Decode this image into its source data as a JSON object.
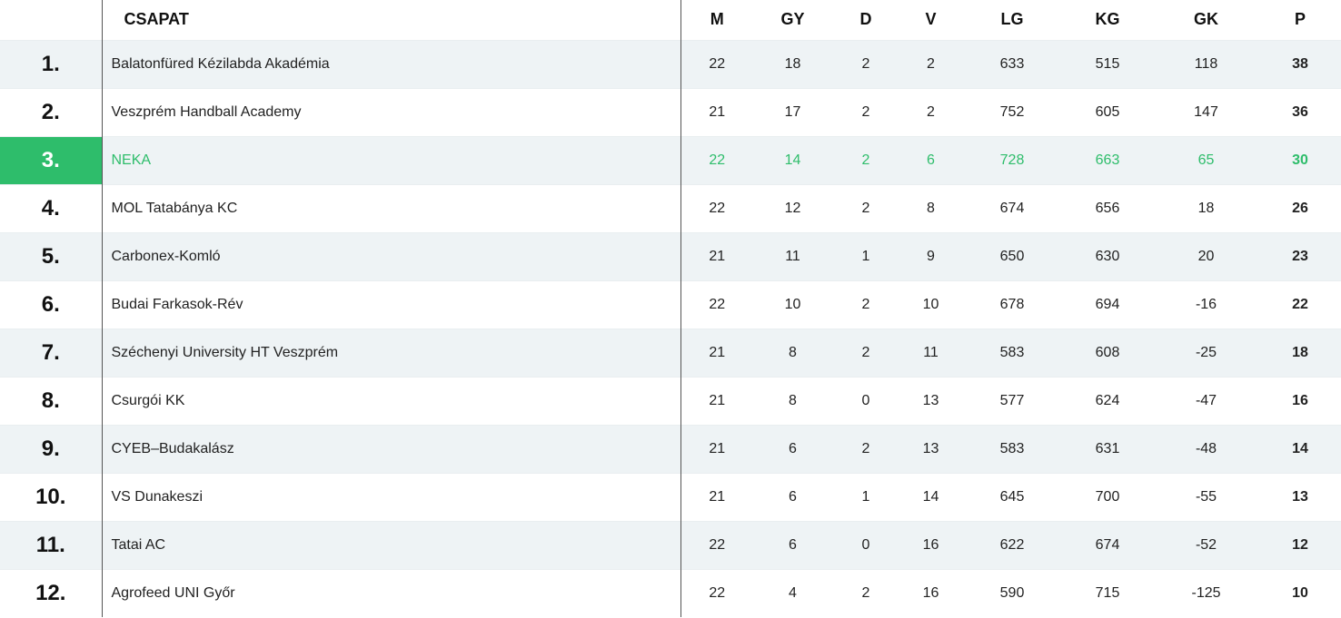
{
  "header": {
    "rank": "",
    "team": "CSAPAT",
    "m": "M",
    "gy": "GY",
    "d": "D",
    "v": "V",
    "lg": "LG",
    "kg": "KG",
    "gk": "GK",
    "p": "P"
  },
  "highlight_color": "#2ebd6b",
  "rows": [
    {
      "rank": "1.",
      "team": "Balatonfüred Kézilabda Akadémia",
      "m": "22",
      "gy": "18",
      "d": "2",
      "v": "2",
      "lg": "633",
      "kg": "515",
      "gk": "118",
      "p": "38"
    },
    {
      "rank": "2.",
      "team": "Veszprém Handball Academy",
      "m": "21",
      "gy": "17",
      "d": "2",
      "v": "2",
      "lg": "752",
      "kg": "605",
      "gk": "147",
      "p": "36"
    },
    {
      "rank": "3.",
      "team": "NEKA",
      "m": "22",
      "gy": "14",
      "d": "2",
      "v": "6",
      "lg": "728",
      "kg": "663",
      "gk": "65",
      "p": "30",
      "highlight": true
    },
    {
      "rank": "4.",
      "team": "MOL Tatabánya KC",
      "m": "22",
      "gy": "12",
      "d": "2",
      "v": "8",
      "lg": "674",
      "kg": "656",
      "gk": "18",
      "p": "26"
    },
    {
      "rank": "5.",
      "team": "Carbonex-Komló",
      "m": "21",
      "gy": "11",
      "d": "1",
      "v": "9",
      "lg": "650",
      "kg": "630",
      "gk": "20",
      "p": "23"
    },
    {
      "rank": "6.",
      "team": "Budai Farkasok-Rév",
      "m": "22",
      "gy": "10",
      "d": "2",
      "v": "10",
      "lg": "678",
      "kg": "694",
      "gk": "-16",
      "p": "22"
    },
    {
      "rank": "7.",
      "team": "Széchenyi University HT Veszprém",
      "m": "21",
      "gy": "8",
      "d": "2",
      "v": "11",
      "lg": "583",
      "kg": "608",
      "gk": "-25",
      "p": "18"
    },
    {
      "rank": "8.",
      "team": "Csurgói KK",
      "m": "21",
      "gy": "8",
      "d": "0",
      "v": "13",
      "lg": "577",
      "kg": "624",
      "gk": "-47",
      "p": "16"
    },
    {
      "rank": "9.",
      "team": "CYEB–Budakalász",
      "m": "21",
      "gy": "6",
      "d": "2",
      "v": "13",
      "lg": "583",
      "kg": "631",
      "gk": "-48",
      "p": "14"
    },
    {
      "rank": "10.",
      "team": "VS Dunakeszi",
      "m": "21",
      "gy": "6",
      "d": "1",
      "v": "14",
      "lg": "645",
      "kg": "700",
      "gk": "-55",
      "p": "13"
    },
    {
      "rank": "11.",
      "team": "Tatai AC",
      "m": "22",
      "gy": "6",
      "d": "0",
      "v": "16",
      "lg": "622",
      "kg": "674",
      "gk": "-52",
      "p": "12"
    },
    {
      "rank": "12.",
      "team": "Agrofeed UNI Győr",
      "m": "22",
      "gy": "4",
      "d": "2",
      "v": "16",
      "lg": "590",
      "kg": "715",
      "gk": "-125",
      "p": "10"
    }
  ]
}
